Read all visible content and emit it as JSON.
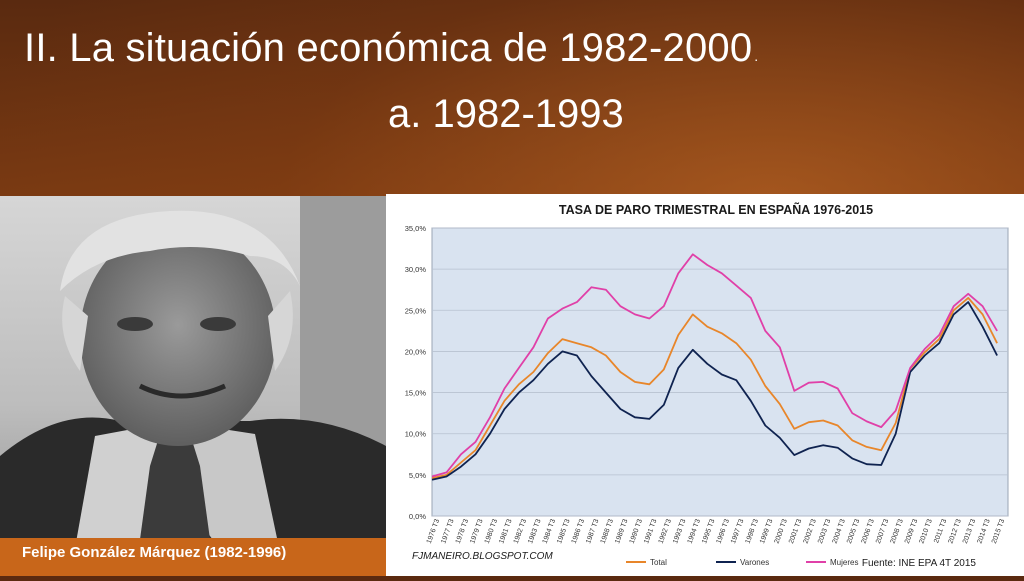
{
  "slide": {
    "title_line1": "II. La situación económica de 1982-2000",
    "title_line1_dot": ".",
    "title_line2": "a. 1982-1993",
    "caption": "Felipe González Márquez (1982-1996)"
  },
  "colors": {
    "total": "#e8862a",
    "varones": "#0f2350",
    "mujeres": "#e040a8",
    "plot_bg": "#d9e3f0"
  },
  "chart_data": {
    "type": "line",
    "title": "TASA DE PARO TRIMESTRAL EN ESPAÑA 1976-2015",
    "ylim": [
      0,
      35
    ],
    "y_ticks": [
      "0,0%",
      "5,0%",
      "10,0%",
      "15,0%",
      "20,0%",
      "25,0%",
      "30,0%",
      "35,0%"
    ],
    "x_start": 1976,
    "x_end": 2015.75,
    "x_labels": [
      "1976 T3",
      "1977 T3",
      "1978 T3",
      "1979 T3",
      "1980 T3",
      "1981 T3",
      "1982 T3",
      "1983 T3",
      "1984 T3",
      "1985 T3",
      "1986 T3",
      "1987 T3",
      "1988 T3",
      "1989 T3",
      "1990 T3",
      "1991 T3",
      "1992 T3",
      "1993 T3",
      "1994 T3",
      "1995 T3",
      "1996 T3",
      "1997 T3",
      "1998 T3",
      "1999 T3",
      "2000 T3",
      "2001 T3",
      "2002 T3",
      "2003 T3",
      "2004 T3",
      "2005 T3",
      "2006 T3",
      "2007 T3",
      "2008 T3",
      "2009 T3",
      "2010 T3",
      "2011 T3",
      "2012 T3",
      "2013 T3",
      "2014 T3",
      "2015 T3"
    ],
    "grid": true,
    "legend_position": "bottom",
    "source_left": "FJMANEIRO.BLOGSPOT.COM",
    "source_right": "Fuente: INE EPA 4T 2015",
    "series": [
      {
        "name": "Total",
        "points": [
          [
            1976,
            4.6
          ],
          [
            1977,
            5.0
          ],
          [
            1978,
            6.5
          ],
          [
            1979,
            8.0
          ],
          [
            1980,
            11.0
          ],
          [
            1981,
            14.0
          ],
          [
            1982,
            16.0
          ],
          [
            1983,
            17.5
          ],
          [
            1984,
            19.8
          ],
          [
            1985,
            21.5
          ],
          [
            1986,
            21.0
          ],
          [
            1987,
            20.5
          ],
          [
            1988,
            19.5
          ],
          [
            1989,
            17.5
          ],
          [
            1990,
            16.3
          ],
          [
            1991,
            16.0
          ],
          [
            1992,
            17.8
          ],
          [
            1993,
            22.0
          ],
          [
            1994,
            24.5
          ],
          [
            1995,
            23.0
          ],
          [
            1996,
            22.2
          ],
          [
            1997,
            21.0
          ],
          [
            1998,
            19.0
          ],
          [
            1999,
            15.8
          ],
          [
            2000,
            13.6
          ],
          [
            2001,
            10.6
          ],
          [
            2002,
            11.4
          ],
          [
            2003,
            11.6
          ],
          [
            2004,
            11.0
          ],
          [
            2005,
            9.2
          ],
          [
            2006,
            8.4
          ],
          [
            2007,
            8.0
          ],
          [
            2008,
            11.3
          ],
          [
            2009,
            17.9
          ],
          [
            2010,
            19.9
          ],
          [
            2011,
            21.5
          ],
          [
            2012,
            25.0
          ],
          [
            2013,
            26.5
          ],
          [
            2014,
            24.5
          ],
          [
            2015,
            21.0
          ]
        ]
      },
      {
        "name": "Varones",
        "points": [
          [
            1976,
            4.4
          ],
          [
            1977,
            4.8
          ],
          [
            1978,
            6.0
          ],
          [
            1979,
            7.5
          ],
          [
            1980,
            10.0
          ],
          [
            1981,
            13.0
          ],
          [
            1982,
            15.0
          ],
          [
            1983,
            16.5
          ],
          [
            1984,
            18.5
          ],
          [
            1985,
            20.0
          ],
          [
            1986,
            19.5
          ],
          [
            1987,
            17.0
          ],
          [
            1988,
            15.0
          ],
          [
            1989,
            13.0
          ],
          [
            1990,
            12.0
          ],
          [
            1991,
            11.8
          ],
          [
            1992,
            13.5
          ],
          [
            1993,
            18.0
          ],
          [
            1994,
            20.2
          ],
          [
            1995,
            18.5
          ],
          [
            1996,
            17.2
          ],
          [
            1997,
            16.5
          ],
          [
            1998,
            14.0
          ],
          [
            1999,
            11.0
          ],
          [
            2000,
            9.5
          ],
          [
            2001,
            7.4
          ],
          [
            2002,
            8.2
          ],
          [
            2003,
            8.6
          ],
          [
            2004,
            8.3
          ],
          [
            2005,
            7.0
          ],
          [
            2006,
            6.3
          ],
          [
            2007,
            6.2
          ],
          [
            2008,
            10.0
          ],
          [
            2009,
            17.5
          ],
          [
            2010,
            19.5
          ],
          [
            2011,
            21.0
          ],
          [
            2012,
            24.5
          ],
          [
            2013,
            26.0
          ],
          [
            2014,
            23.0
          ],
          [
            2015,
            19.5
          ]
        ]
      },
      {
        "name": "Mujeres",
        "points": [
          [
            1976,
            4.8
          ],
          [
            1977,
            5.3
          ],
          [
            1978,
            7.5
          ],
          [
            1979,
            9.0
          ],
          [
            1980,
            12.0
          ],
          [
            1981,
            15.5
          ],
          [
            1982,
            18.0
          ],
          [
            1983,
            20.5
          ],
          [
            1984,
            24.0
          ],
          [
            1985,
            25.2
          ],
          [
            1986,
            26.0
          ],
          [
            1987,
            27.8
          ],
          [
            1988,
            27.5
          ],
          [
            1989,
            25.5
          ],
          [
            1990,
            24.5
          ],
          [
            1991,
            24.0
          ],
          [
            1992,
            25.5
          ],
          [
            1993,
            29.5
          ],
          [
            1994,
            31.8
          ],
          [
            1995,
            30.5
          ],
          [
            1996,
            29.5
          ],
          [
            1997,
            28.0
          ],
          [
            1998,
            26.5
          ],
          [
            1999,
            22.5
          ],
          [
            2000,
            20.5
          ],
          [
            2001,
            15.2
          ],
          [
            2002,
            16.2
          ],
          [
            2003,
            16.3
          ],
          [
            2004,
            15.5
          ],
          [
            2005,
            12.5
          ],
          [
            2006,
            11.5
          ],
          [
            2007,
            10.8
          ],
          [
            2008,
            12.8
          ],
          [
            2009,
            18.0
          ],
          [
            2010,
            20.3
          ],
          [
            2011,
            22.0
          ],
          [
            2012,
            25.5
          ],
          [
            2013,
            27.0
          ],
          [
            2014,
            25.5
          ],
          [
            2015,
            22.5
          ]
        ]
      }
    ]
  }
}
